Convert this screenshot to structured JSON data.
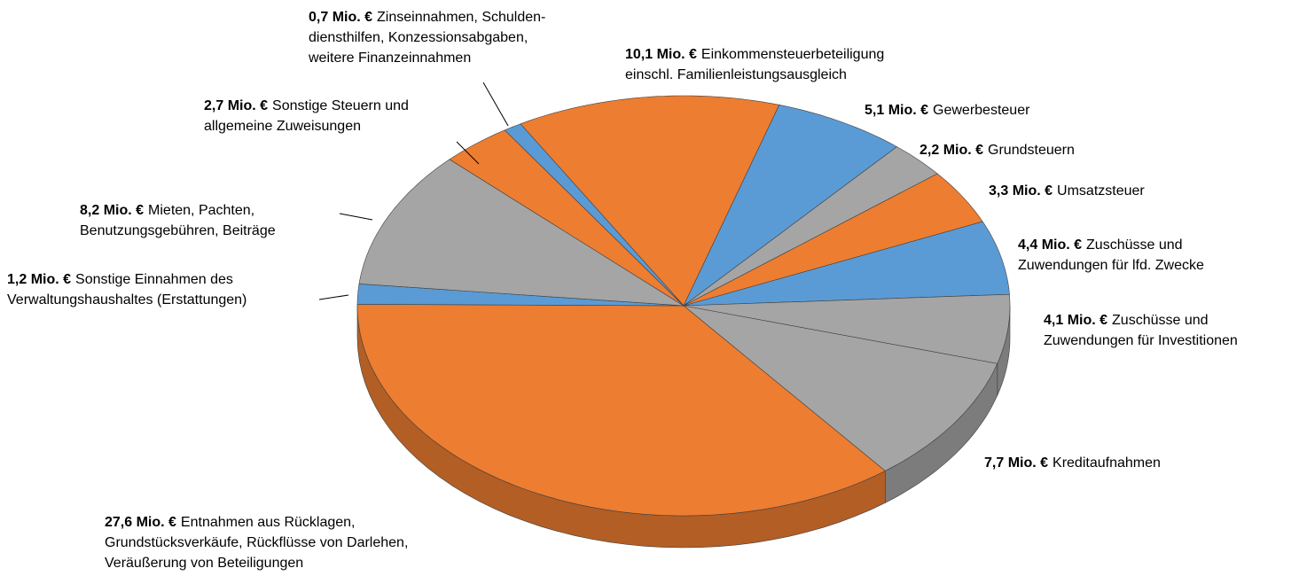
{
  "chart_data": {
    "type": "pie3d",
    "unit": "Mio. €",
    "categories": [
      [
        "Einkommensteuerbeteiligung",
        "einschl. Familienleistungsausgleich"
      ],
      [
        "Gewerbesteuer"
      ],
      [
        "Grundsteuern"
      ],
      [
        "Umsatzsteuer"
      ],
      [
        "Zuschüsse und",
        "Zuwendungen für lfd. Zwecke"
      ],
      [
        "Zuschüsse und",
        "Zuwendungen für Investitionen"
      ],
      [
        "Kreditaufnahmen"
      ],
      [
        "Entnahmen aus Rücklagen,",
        "Grundstücksverkäufe, Rückflüsse von Darlehen,",
        "Veräußerung von Beteiligungen"
      ],
      [
        "Sonstige Einnahmen des",
        "Verwaltungshaushaltes (Erstattungen)"
      ],
      [
        "Mieten, Pachten,",
        "Benutzungsgebühren, Beiträge"
      ],
      [
        "Sonstige Steuern und",
        "allgemeine Zuweisungen"
      ],
      [
        "Zinseinnahmen, Schulden-",
        "diensthilfen, Konzessionsabgaben,",
        "weitere Finanzeinnahmen"
      ]
    ],
    "values": [
      10.1,
      5.1,
      2.2,
      3.3,
      4.4,
      4.1,
      7.7,
      27.6,
      1.2,
      8.2,
      2.7,
      0.7
    ],
    "value_labels": [
      "10,1 Mio. €",
      "5,1 Mio. €",
      "2,2 Mio. €",
      "3,3 Mio. €",
      "4,4 Mio. €",
      "4,1 Mio. €",
      "7,7 Mio. €",
      "27,6 Mio. €",
      "1,2 Mio. €",
      "8,2 Mio. €",
      "2,7 Mio. €",
      "0,7 Mio. €"
    ],
    "colors": [
      "#ed7d31",
      "#5b9bd5",
      "#a5a5a5",
      "#ed7d31",
      "#5b9bd5",
      "#a5a5a5",
      "#a5a5a5",
      "#ed7d31",
      "#5b9bd5",
      "#a5a5a5",
      "#ed7d31",
      "#5b9bd5"
    ]
  }
}
